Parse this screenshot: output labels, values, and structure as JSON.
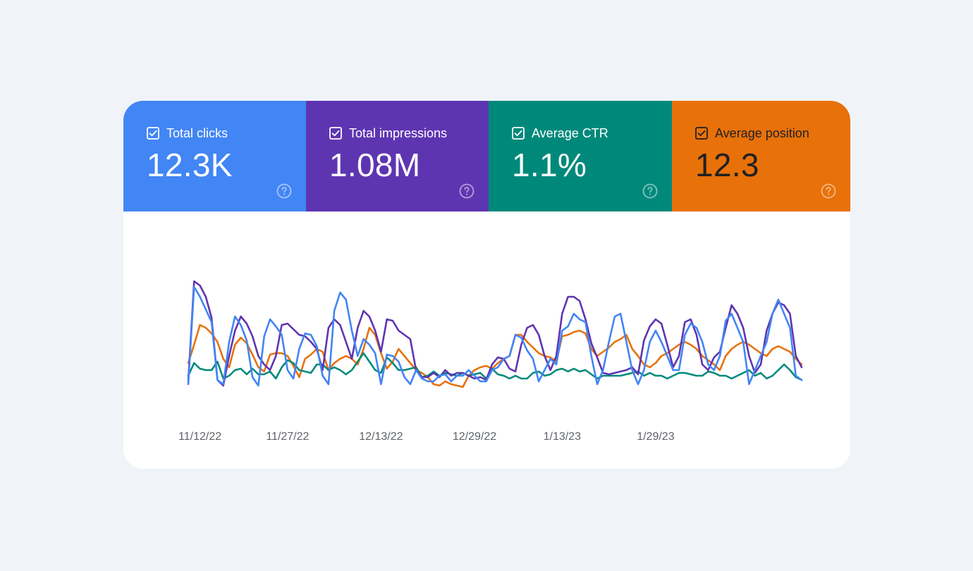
{
  "metrics": [
    {
      "label": "Total clicks",
      "value": "12.3K",
      "bg": "#4285f4",
      "fg": "#ffffff",
      "help_color": "#a9c6fa"
    },
    {
      "label": "Total impressions",
      "value": "1.08M",
      "bg": "#5e35b1",
      "fg": "#ffffff",
      "help_color": "#b3a0dd"
    },
    {
      "label": "Average CTR",
      "value": "1.1%",
      "bg": "#00897b",
      "fg": "#ffffff",
      "help_color": "#80c4bc"
    },
    {
      "label": "Average position",
      "value": "12.3",
      "bg": "#e8710a",
      "fg": "#202124",
      "help_color": "#f4b884"
    }
  ],
  "chart_data": {
    "type": "line",
    "x_ticks": [
      "11/12/22",
      "11/27/22",
      "12/13/22",
      "12/29/22",
      "1/13/23",
      "1/29/23"
    ],
    "x_tick_indices": [
      2,
      17,
      33,
      49,
      64,
      80
    ],
    "grid": false,
    "legend": "none",
    "ylim": [
      0,
      100
    ],
    "series": [
      {
        "metric": "Total clicks",
        "color": "#4285f4",
        "values": [
          10,
          79,
          72,
          63,
          54,
          13,
          10,
          40,
          58,
          52,
          41,
          15,
          9,
          44,
          56,
          51,
          45,
          20,
          14,
          35,
          46,
          45,
          37,
          16,
          10,
          62,
          75,
          70,
          48,
          30,
          42,
          38,
          32,
          10,
          31,
          30,
          26,
          15,
          10,
          20,
          14,
          12,
          12,
          16,
          17,
          12,
          16,
          16,
          20,
          16,
          12,
          12,
          20,
          22,
          28,
          30,
          45,
          43,
          34,
          28,
          12,
          20,
          28,
          24,
          48,
          51,
          60,
          56,
          54,
          30,
          10,
          20,
          40,
          58,
          60,
          40,
          20,
          10,
          20,
          40,
          48,
          40,
          30,
          20,
          20,
          45,
          53,
          50,
          40,
          24,
          20,
          30,
          55,
          60,
          50,
          40,
          10,
          20,
          30,
          40,
          60,
          70,
          60,
          50,
          16,
          13
        ]
      },
      {
        "metric": "Total impressions",
        "color": "#5e35b1",
        "values": [
          12,
          83,
          80,
          72,
          57,
          13,
          9,
          30,
          48,
          58,
          53,
          44,
          30,
          24,
          20,
          30,
          52,
          53,
          49,
          45,
          44,
          40,
          35,
          20,
          50,
          56,
          52,
          40,
          28,
          50,
          62,
          58,
          48,
          33,
          56,
          55,
          48,
          45,
          42,
          20,
          15,
          15,
          18,
          15,
          20,
          16,
          18,
          18,
          16,
          14,
          15,
          13,
          24,
          29,
          28,
          21,
          19,
          38,
          50,
          52,
          45,
          30,
          20,
          30,
          60,
          72,
          72,
          69,
          56,
          39,
          29,
          18,
          17,
          18,
          19,
          20,
          22,
          17,
          41,
          51,
          56,
          53,
          38,
          22,
          30,
          54,
          56,
          45,
          24,
          20,
          29,
          33,
          50,
          66,
          60,
          50,
          30,
          18,
          24,
          48,
          60,
          68,
          66,
          60,
          30,
          22
        ]
      },
      {
        "metric": "Average CTR",
        "color": "#00897b",
        "values": [
          16,
          25,
          21,
          20,
          20,
          26,
          14,
          16,
          20,
          21,
          17,
          21,
          17,
          17,
          19,
          14,
          22,
          27,
          25,
          20,
          19,
          18,
          24,
          24,
          20,
          22,
          20,
          17,
          20,
          26,
          32,
          26,
          20,
          18,
          29,
          25,
          20,
          20,
          21,
          22,
          15,
          16,
          19,
          16,
          18,
          17,
          16,
          18,
          16,
          17,
          18,
          14,
          21,
          17,
          16,
          14,
          16,
          14,
          14,
          18,
          19,
          16,
          17,
          20,
          21,
          19,
          21,
          19,
          20,
          17,
          14,
          16,
          16,
          16,
          16,
          17,
          18,
          19,
          16,
          18,
          16,
          16,
          14,
          16,
          18,
          18,
          17,
          16,
          16,
          19,
          18,
          16,
          16,
          14,
          16,
          18,
          20,
          16,
          18,
          14,
          16,
          20,
          24,
          20,
          15,
          13
        ]
      },
      {
        "metric": "Average position",
        "color": "#e8710a",
        "values": [
          25,
          38,
          52,
          50,
          46,
          40,
          28,
          22,
          38,
          43,
          39,
          31,
          22,
          19,
          31,
          32,
          32,
          30,
          23,
          15,
          28,
          31,
          35,
          33,
          20,
          25,
          28,
          30,
          28,
          24,
          35,
          50,
          45,
          32,
          21,
          26,
          35,
          30,
          25,
          20,
          18,
          15,
          10,
          9,
          12,
          10,
          9,
          8,
          16,
          20,
          22,
          23,
          21,
          25,
          28,
          30,
          45,
          45,
          40,
          36,
          32,
          30,
          29,
          26,
          44,
          45,
          47,
          48,
          46,
          35,
          30,
          33,
          36,
          40,
          42,
          45,
          35,
          30,
          24,
          22,
          25,
          30,
          32,
          35,
          38,
          40,
          38,
          35,
          30,
          27,
          24,
          20,
          30,
          35,
          38,
          40,
          38,
          35,
          32,
          30,
          35,
          37,
          35,
          33,
          28,
          24
        ]
      }
    ]
  }
}
